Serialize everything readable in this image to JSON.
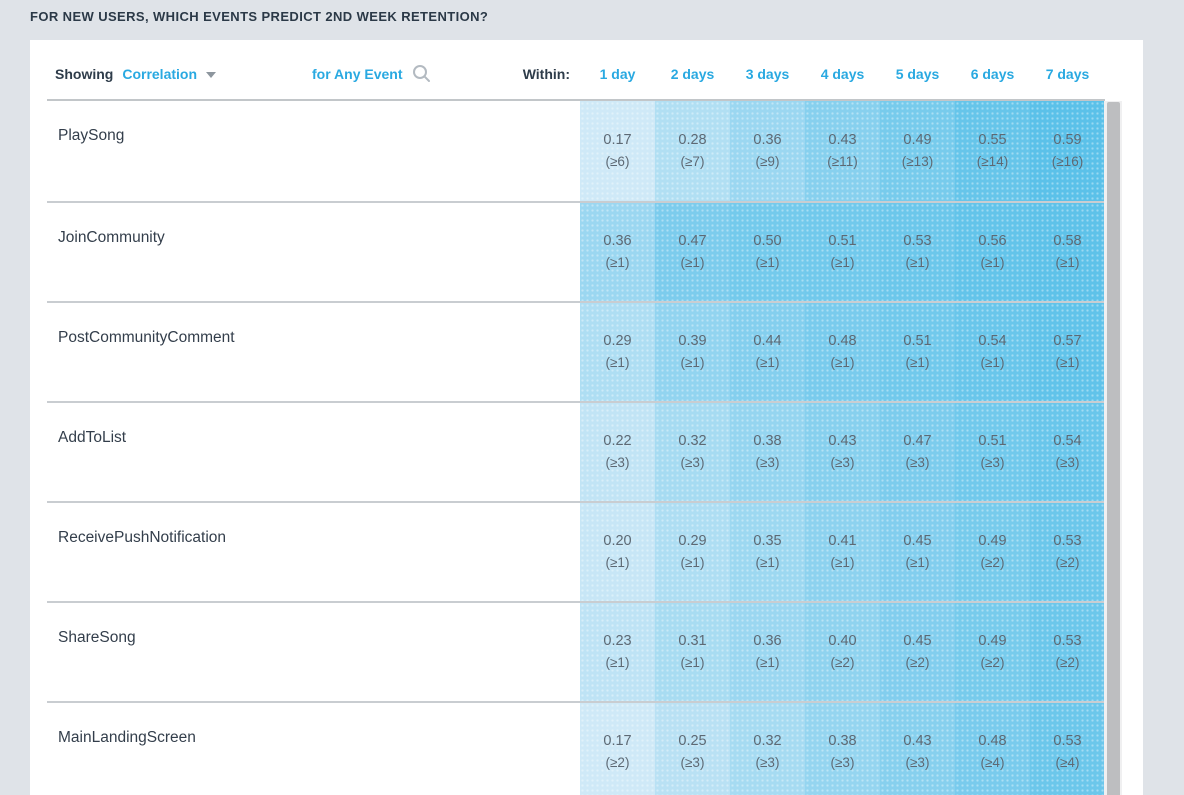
{
  "page": {
    "title": "FOR NEW USERS, WHICH EVENTS PREDICT 2ND WEEK RETENTION?"
  },
  "toolbar": {
    "showing_label": "Showing",
    "metric_dropdown": "Correlation",
    "event_selector": "for Any Event",
    "within_label": "Within:"
  },
  "columns": [
    "1 day",
    "2 days",
    "3 days",
    "4 days",
    "5 days",
    "6 days",
    "7 days"
  ],
  "rows": [
    {
      "event": "PlaySong",
      "cells": [
        {
          "value": "0.17",
          "min_events": "(≥6)"
        },
        {
          "value": "0.28",
          "min_events": "(≥7)"
        },
        {
          "value": "0.36",
          "min_events": "(≥9)"
        },
        {
          "value": "0.43",
          "min_events": "(≥11)"
        },
        {
          "value": "0.49",
          "min_events": "(≥13)"
        },
        {
          "value": "0.55",
          "min_events": "(≥14)"
        },
        {
          "value": "0.59",
          "min_events": "(≥16)"
        }
      ]
    },
    {
      "event": "JoinCommunity",
      "cells": [
        {
          "value": "0.36",
          "min_events": "(≥1)"
        },
        {
          "value": "0.47",
          "min_events": "(≥1)"
        },
        {
          "value": "0.50",
          "min_events": "(≥1)"
        },
        {
          "value": "0.51",
          "min_events": "(≥1)"
        },
        {
          "value": "0.53",
          "min_events": "(≥1)"
        },
        {
          "value": "0.56",
          "min_events": "(≥1)"
        },
        {
          "value": "0.58",
          "min_events": "(≥1)"
        }
      ]
    },
    {
      "event": "PostCommunityComment",
      "cells": [
        {
          "value": "0.29",
          "min_events": "(≥1)"
        },
        {
          "value": "0.39",
          "min_events": "(≥1)"
        },
        {
          "value": "0.44",
          "min_events": "(≥1)"
        },
        {
          "value": "0.48",
          "min_events": "(≥1)"
        },
        {
          "value": "0.51",
          "min_events": "(≥1)"
        },
        {
          "value": "0.54",
          "min_events": "(≥1)"
        },
        {
          "value": "0.57",
          "min_events": "(≥1)"
        }
      ]
    },
    {
      "event": "AddToList",
      "cells": [
        {
          "value": "0.22",
          "min_events": "(≥3)"
        },
        {
          "value": "0.32",
          "min_events": "(≥3)"
        },
        {
          "value": "0.38",
          "min_events": "(≥3)"
        },
        {
          "value": "0.43",
          "min_events": "(≥3)"
        },
        {
          "value": "0.47",
          "min_events": "(≥3)"
        },
        {
          "value": "0.51",
          "min_events": "(≥3)"
        },
        {
          "value": "0.54",
          "min_events": "(≥3)"
        }
      ]
    },
    {
      "event": "ReceivePushNotification",
      "cells": [
        {
          "value": "0.20",
          "min_events": "(≥1)"
        },
        {
          "value": "0.29",
          "min_events": "(≥1)"
        },
        {
          "value": "0.35",
          "min_events": "(≥1)"
        },
        {
          "value": "0.41",
          "min_events": "(≥1)"
        },
        {
          "value": "0.45",
          "min_events": "(≥1)"
        },
        {
          "value": "0.49",
          "min_events": "(≥2)"
        },
        {
          "value": "0.53",
          "min_events": "(≥2)"
        }
      ]
    },
    {
      "event": "ShareSong",
      "cells": [
        {
          "value": "0.23",
          "min_events": "(≥1)"
        },
        {
          "value": "0.31",
          "min_events": "(≥1)"
        },
        {
          "value": "0.36",
          "min_events": "(≥1)"
        },
        {
          "value": "0.40",
          "min_events": "(≥2)"
        },
        {
          "value": "0.45",
          "min_events": "(≥2)"
        },
        {
          "value": "0.49",
          "min_events": "(≥2)"
        },
        {
          "value": "0.53",
          "min_events": "(≥2)"
        }
      ]
    },
    {
      "event": "MainLandingScreen",
      "cells": [
        {
          "value": "0.17",
          "min_events": "(≥2)"
        },
        {
          "value": "0.25",
          "min_events": "(≥3)"
        },
        {
          "value": "0.32",
          "min_events": "(≥3)"
        },
        {
          "value": "0.38",
          "min_events": "(≥3)"
        },
        {
          "value": "0.43",
          "min_events": "(≥3)"
        },
        {
          "value": "0.48",
          "min_events": "(≥4)"
        },
        {
          "value": "0.53",
          "min_events": "(≥4)"
        }
      ]
    }
  ],
  "colors": {
    "accent_blue": "#29a9e1",
    "page_background": "#dfe3e8",
    "card_background": "#ffffff",
    "cell_scale_low": "#cfe9f7",
    "cell_scale_high": "#5bc1e9",
    "cell_value_range": [
      0.17,
      0.59
    ],
    "cell_text": "#5d6974",
    "title_text": "#2b3947",
    "row_label_text": "#333e4b"
  },
  "icons": {
    "metric_caret": "chevron-down-icon",
    "event_search": "search-icon"
  },
  "chart_data": {
    "type": "heatmap",
    "title": "FOR NEW USERS, WHICH EVENTS PREDICT 2ND WEEK RETENTION?",
    "metric": "Correlation",
    "scope": "for Any Event",
    "x_categories": [
      "1 day",
      "2 days",
      "3 days",
      "4 days",
      "5 days",
      "6 days",
      "7 days"
    ],
    "y_categories": [
      "PlaySong",
      "JoinCommunity",
      "PostCommunityComment",
      "AddToList",
      "ReceivePushNotification",
      "ShareSong",
      "MainLandingScreen"
    ],
    "values": [
      [
        0.17,
        0.28,
        0.36,
        0.43,
        0.49,
        0.55,
        0.59
      ],
      [
        0.36,
        0.47,
        0.5,
        0.51,
        0.53,
        0.56,
        0.58
      ],
      [
        0.29,
        0.39,
        0.44,
        0.48,
        0.51,
        0.54,
        0.57
      ],
      [
        0.22,
        0.32,
        0.38,
        0.43,
        0.47,
        0.51,
        0.54
      ],
      [
        0.2,
        0.29,
        0.35,
        0.41,
        0.45,
        0.49,
        0.53
      ],
      [
        0.23,
        0.31,
        0.36,
        0.4,
        0.45,
        0.49,
        0.53
      ],
      [
        0.17,
        0.25,
        0.32,
        0.38,
        0.43,
        0.48,
        0.53
      ]
    ],
    "min_event_counts": [
      [
        6,
        7,
        9,
        11,
        13,
        14,
        16
      ],
      [
        1,
        1,
        1,
        1,
        1,
        1,
        1
      ],
      [
        1,
        1,
        1,
        1,
        1,
        1,
        1
      ],
      [
        3,
        3,
        3,
        3,
        3,
        3,
        3
      ],
      [
        1,
        1,
        1,
        1,
        1,
        2,
        2
      ],
      [
        1,
        1,
        1,
        2,
        2,
        2,
        2
      ],
      [
        2,
        3,
        3,
        3,
        3,
        4,
        4
      ]
    ],
    "color_range": [
      "#cfe9f7",
      "#5bc1e9"
    ]
  }
}
